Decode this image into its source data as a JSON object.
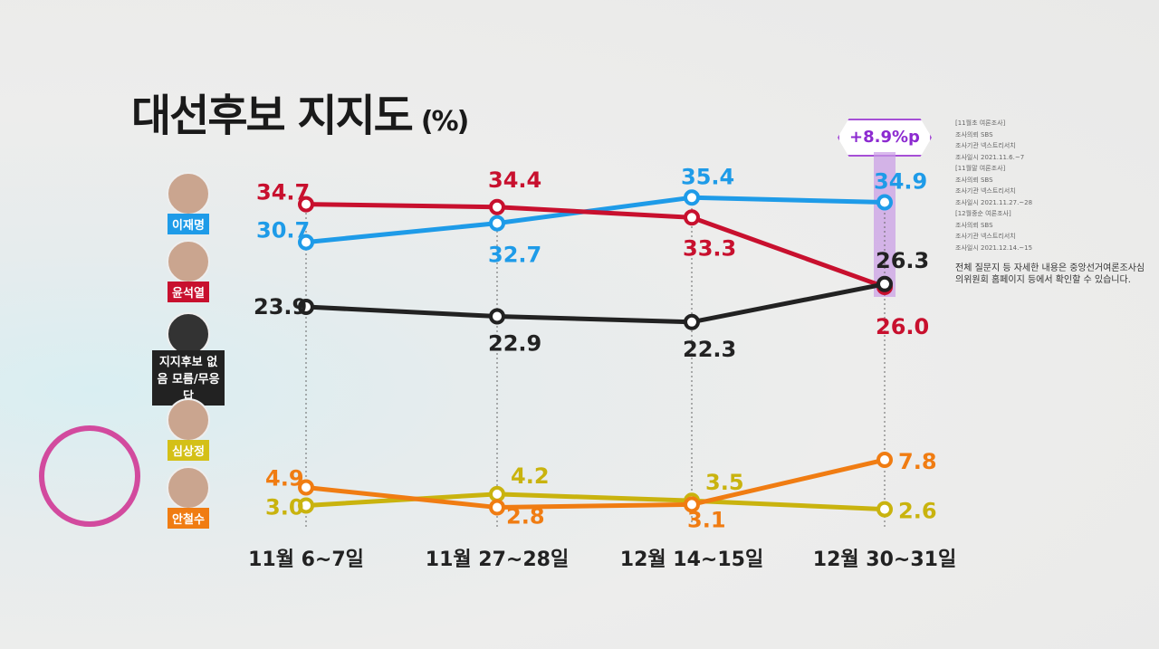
{
  "title": "대선후보 지지도",
  "unit": "(%)",
  "badge": "+8.9%p",
  "candidates": [
    {
      "name": "이재명",
      "color": "#1e9be8"
    },
    {
      "name": "윤석열",
      "color": "#c8102e"
    },
    {
      "name": "지지후보 없음 모름/무응답",
      "color": "#222222"
    },
    {
      "name": "심상정",
      "color": "#d4c017"
    },
    {
      "name": "안철수",
      "color": "#f07c12"
    }
  ],
  "notes": [
    "[11월초 여론조사]",
    "조사의뢰 SBS",
    "조사기관 넥스트리서치",
    "조사일시 2021.11.6.~7",
    "[11월말 여론조사]",
    "조사의뢰 SBS",
    "조사기관 넥스트리서치",
    "조사일시 2021.11.27.~28",
    "[12월중순 여론조사]",
    "조사의뢰 SBS",
    "조사기관 넥스트리서치",
    "조사일시 2021.12.14.~15"
  ],
  "notes_footer": "전체 질문지 등 자세한 내용은 중앙선거여론조사심의위원회 홈페이지 등에서 확인할 수 있습니다.",
  "chart_data": {
    "type": "line",
    "title": "대선후보 지지도 (%)",
    "categories": [
      "11월 6~7일",
      "11월 27~28일",
      "12월 14~15일",
      "12월 30~31일"
    ],
    "series": [
      {
        "name": "이재명",
        "color": "#1e9be8",
        "values": [
          30.7,
          32.7,
          35.4,
          34.9
        ]
      },
      {
        "name": "윤석열",
        "color": "#c8102e",
        "values": [
          34.7,
          34.4,
          33.3,
          26.0
        ]
      },
      {
        "name": "지지후보 없음/모름/무응답",
        "color": "#222222",
        "values": [
          23.9,
          22.9,
          22.3,
          26.3
        ]
      },
      {
        "name": "심상정",
        "color": "#c9b30e",
        "values": [
          3.0,
          4.2,
          3.5,
          2.6
        ]
      },
      {
        "name": "안철수",
        "color": "#f07c12",
        "values": [
          4.9,
          2.8,
          3.1,
          7.8
        ]
      }
    ],
    "annotation": "+8.9%p"
  }
}
